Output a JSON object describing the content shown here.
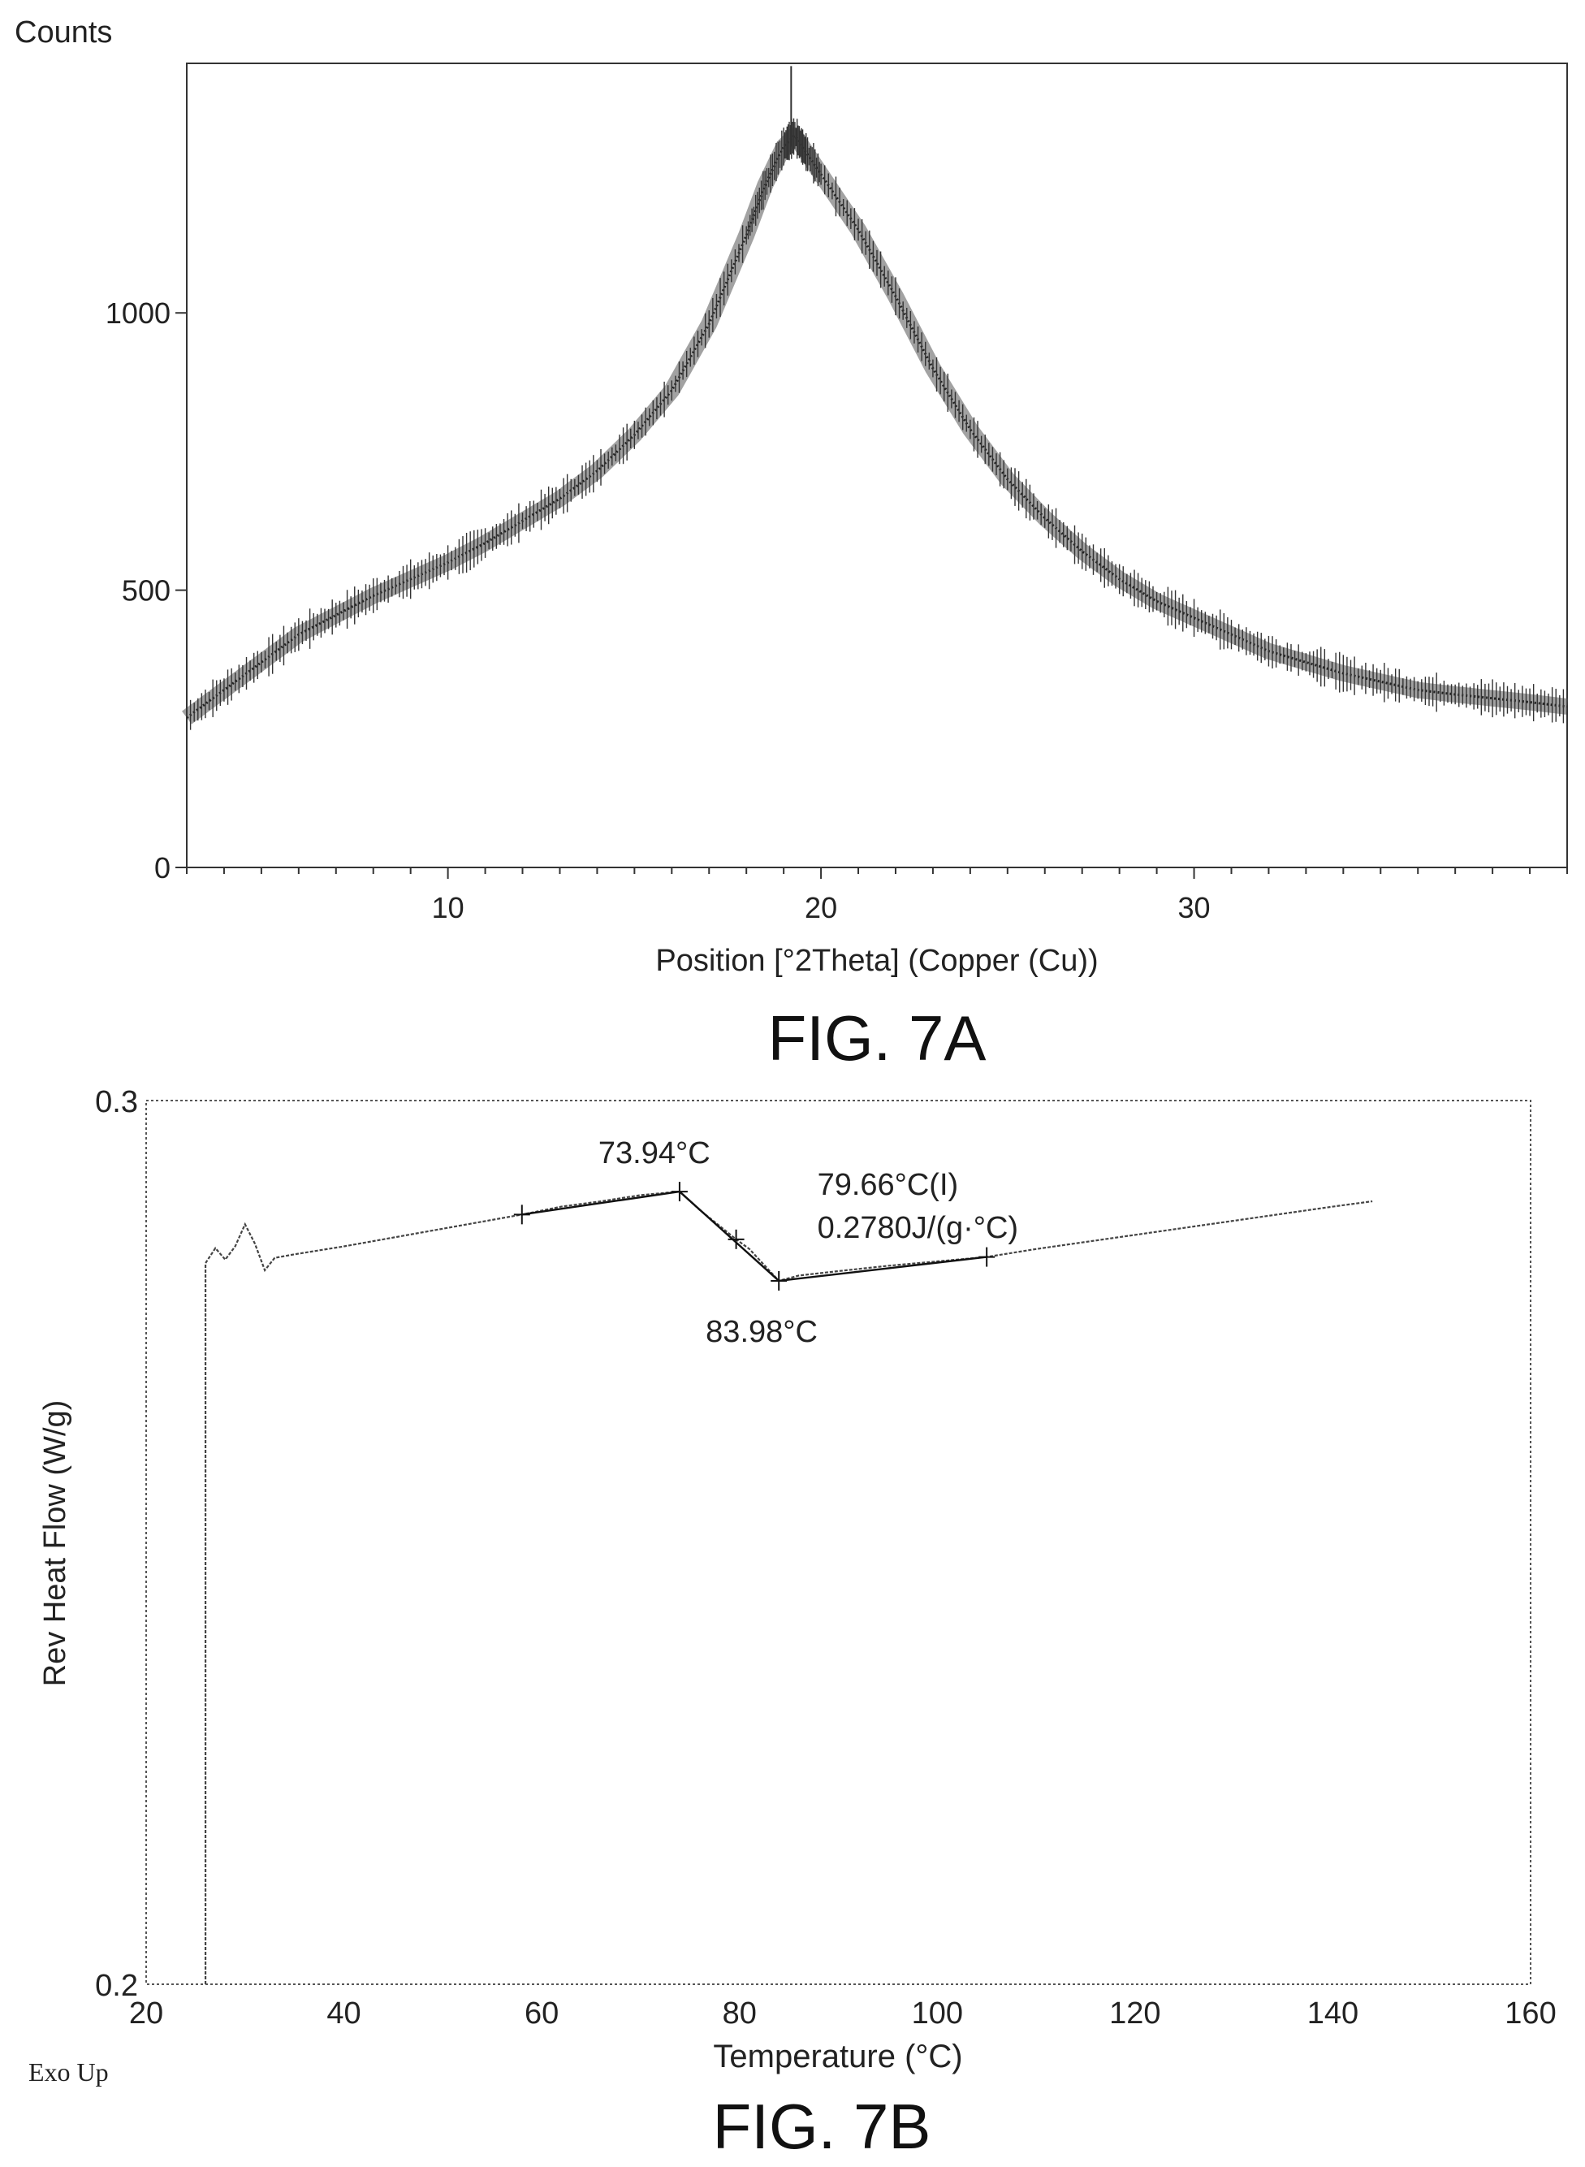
{
  "chart_data": [
    {
      "type": "line",
      "figure_label": "FIG. 7A",
      "ylabel": "Counts",
      "xlabel": "Position [°2Theta] (Copper (Cu))",
      "xlim": [
        3,
        40
      ],
      "ylim": [
        0,
        1450
      ],
      "xticks": [
        10,
        20,
        30
      ],
      "yticks": [
        0,
        500,
        1000
      ],
      "grid": false,
      "series": [
        {
          "x": [
            3,
            4,
            5,
            6,
            7,
            8,
            9,
            10,
            11,
            12,
            13,
            14,
            15,
            16,
            17,
            18,
            18.5,
            19,
            19.3,
            19.6,
            20,
            21,
            22,
            23,
            24,
            25,
            26,
            27,
            28,
            29,
            30,
            31,
            32,
            33,
            34,
            35,
            36,
            37,
            38,
            39,
            40
          ],
          "y": [
            270,
            320,
            370,
            420,
            455,
            490,
            520,
            550,
            585,
            625,
            665,
            715,
            780,
            860,
            980,
            1140,
            1230,
            1300,
            1320,
            1290,
            1250,
            1150,
            1030,
            900,
            790,
            700,
            630,
            570,
            520,
            480,
            450,
            420,
            390,
            370,
            350,
            335,
            320,
            312,
            305,
            298,
            290
          ]
        }
      ]
    },
    {
      "type": "line",
      "figure_label": "FIG. 7B",
      "ylabel": "Rev Heat Flow (W/g)",
      "xlabel": "Temperature (°C)",
      "xlim": [
        20,
        160
      ],
      "ylim": [
        0.2,
        0.3
      ],
      "xticks": [
        20,
        40,
        60,
        80,
        100,
        120,
        140,
        160
      ],
      "yticks": [
        0.2,
        0.3
      ],
      "grid": false,
      "corner_note": "Exo Up",
      "series": [
        {
          "x": [
            26,
            26,
            27,
            28,
            29,
            30,
            31,
            32,
            33,
            35,
            40,
            45,
            50,
            55,
            58,
            62,
            66,
            70,
            73.94,
            76,
            78,
            79.66,
            81,
            83.98,
            86,
            90,
            95,
            100,
            105,
            110,
            115,
            120,
            125,
            130,
            135,
            140,
            144
          ],
          "y": [
            0.2,
            0.2816,
            0.2833,
            0.282,
            0.2835,
            0.286,
            0.2838,
            0.2808,
            0.2822,
            0.2826,
            0.2835,
            0.2845,
            0.2855,
            0.2865,
            0.2871,
            0.288,
            0.2886,
            0.2893,
            0.2897,
            0.2876,
            0.2858,
            0.2843,
            0.2832,
            0.2796,
            0.2802,
            0.2807,
            0.2813,
            0.2818,
            0.2823,
            0.2832,
            0.284,
            0.2848,
            0.2856,
            0.2864,
            0.2872,
            0.288,
            0.2886
          ]
        }
      ],
      "annotations": [
        {
          "text": "73.94°C",
          "x": 73.94,
          "y": 0.2897
        },
        {
          "text": "79.66°C(I)",
          "x": 79.66,
          "y": 0.2843
        },
        {
          "text": "0.2780J/(g·°C)",
          "x": 79.66,
          "y": 0.2843
        },
        {
          "text": "83.98°C",
          "x": 83.98,
          "y": 0.2796
        }
      ],
      "tangent_points_x": [
        58,
        73.94,
        79.66,
        83.98,
        105
      ]
    }
  ]
}
